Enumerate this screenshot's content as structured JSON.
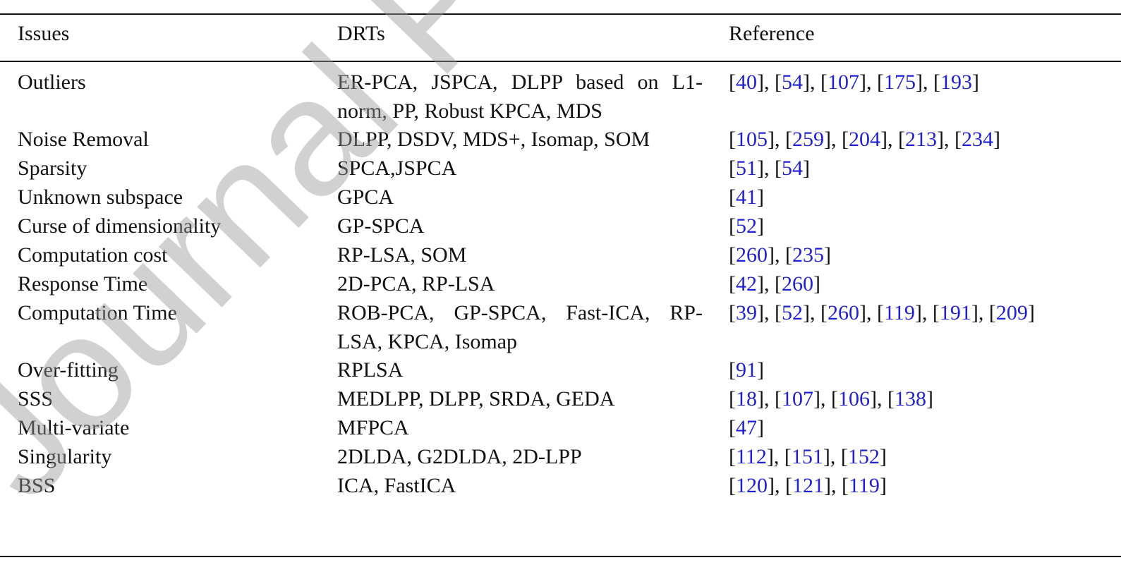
{
  "watermark": "Journal Pre",
  "table": {
    "header": [
      "Issues",
      "DRTs",
      "Reference"
    ],
    "rows": [
      [
        "Outliers",
        "ER-PCA, JSPCA, DLPP based on L1-norm, PP, Robust KPCA, MDS",
        "[40], [54], [107],  [175], [193]"
      ],
      [
        "Noise Removal",
        "DLPP, DSDV, MDS+, Isomap, SOM",
        "[105], [259], [204], [213], [234]"
      ],
      [
        "Sparsity",
        "SPCA,JSPCA",
        "[51], [54]"
      ],
      [
        "Unknown subspace",
        "GPCA",
        "[41]"
      ],
      [
        "Curse of dimensionality",
        "GP-SPCA",
        "[52]"
      ],
      [
        "Computation cost",
        "RP-LSA, SOM",
        "[260], [235]"
      ],
      [
        "Response Time",
        "2D-PCA, RP-LSA",
        "[42], [260]"
      ],
      [
        "Computation Time",
        "ROB-PCA, GP-SPCA, Fast-ICA, RP-LSA, KPCA, Isomap",
        "[39], [52], [260], [119], [191], [209]"
      ],
      [
        "Over-fitting",
        "RPLSA",
        "[91]"
      ],
      [
        "SSS",
        "MEDLPP, DLPP, SRDA, GEDA",
        "[18], [107], [106], [138]"
      ],
      [
        "Multi-variate",
        "MFPCA",
        "[47]"
      ],
      [
        "Singularity",
        "2DLDA, G2DLDA, 2D-LPP",
        "[112], [151], [152]"
      ],
      [
        "BSS",
        "ICA, FastICA",
        "[120], [121], [119]"
      ]
    ]
  }
}
